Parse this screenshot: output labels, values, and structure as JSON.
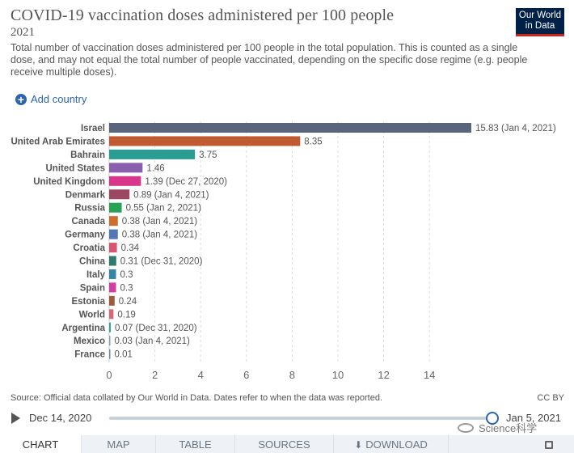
{
  "header": {
    "title": "COVID-19 vaccination doses administered per 100 people",
    "year": "2021",
    "subtitle": "Total number of vaccination doses administered per 100 people in the total population. This is counted as a single dose, and may not equal the total number of people vaccinated, depending on the specific dose regime (e.g. people receive multiple doses).",
    "logo_line1": "Our World",
    "logo_line2": "in Data",
    "add_country": "Add country"
  },
  "chart_data": {
    "type": "bar",
    "orientation": "horizontal",
    "title": "COVID-19 vaccination doses administered per 100 people",
    "xlabel": "",
    "ylabel": "",
    "xlim": [
      0,
      16
    ],
    "xticks": [
      0,
      2,
      4,
      6,
      8,
      10,
      12,
      14
    ],
    "grid": true,
    "categories": [
      "Israel",
      "United Arab Emirates",
      "Bahrain",
      "United States",
      "United Kingdom",
      "Denmark",
      "Russia",
      "Canada",
      "Germany",
      "Croatia",
      "China",
      "Italy",
      "Spain",
      "Estonia",
      "World",
      "Argentina",
      "Mexico",
      "France"
    ],
    "values": [
      15.83,
      8.35,
      3.75,
      1.46,
      1.39,
      0.89,
      0.55,
      0.38,
      0.38,
      0.34,
      0.31,
      0.3,
      0.3,
      0.24,
      0.19,
      0.07,
      0.03,
      0.01
    ],
    "value_labels": [
      "15.83 (Jan 4, 2021)",
      "8.35",
      "3.75",
      "1.46",
      "1.39 (Dec 27, 2020)",
      "0.89 (Jan 4, 2021)",
      "0.55 (Jan 2, 2021)",
      "0.38 (Jan 4, 2021)",
      "0.38 (Jan 4, 2021)",
      "0.34",
      "0.31 (Dec 31, 2020)",
      "0.3",
      "0.3",
      "0.24",
      "0.19",
      "0.07 (Dec 31, 2020)",
      "0.03 (Jan 4, 2021)",
      "0.01"
    ],
    "colors": [
      "#58657a",
      "#c05a32",
      "#2a9d93",
      "#8b5fb0",
      "#d8368b",
      "#9b4960",
      "#28a255",
      "#cd6d2e",
      "#5378b5",
      "#d9566f",
      "#2e7b6c",
      "#3486a8",
      "#d63da1",
      "#a05b3e",
      "#d26a7a",
      "#2aa89a",
      "#8ca0b5",
      "#7a8898"
    ]
  },
  "footer": {
    "source": "Source: Official data collated by Our World in Data. Dates refer to when the data was reported.",
    "license": "CC BY",
    "timeline_start": "Dec 14, 2020",
    "timeline_end": "Jan 5, 2021",
    "watermark": "Science科学"
  },
  "tabs": [
    "CHART",
    "MAP",
    "TABLE",
    "SOURCES",
    "DOWNLOAD"
  ]
}
